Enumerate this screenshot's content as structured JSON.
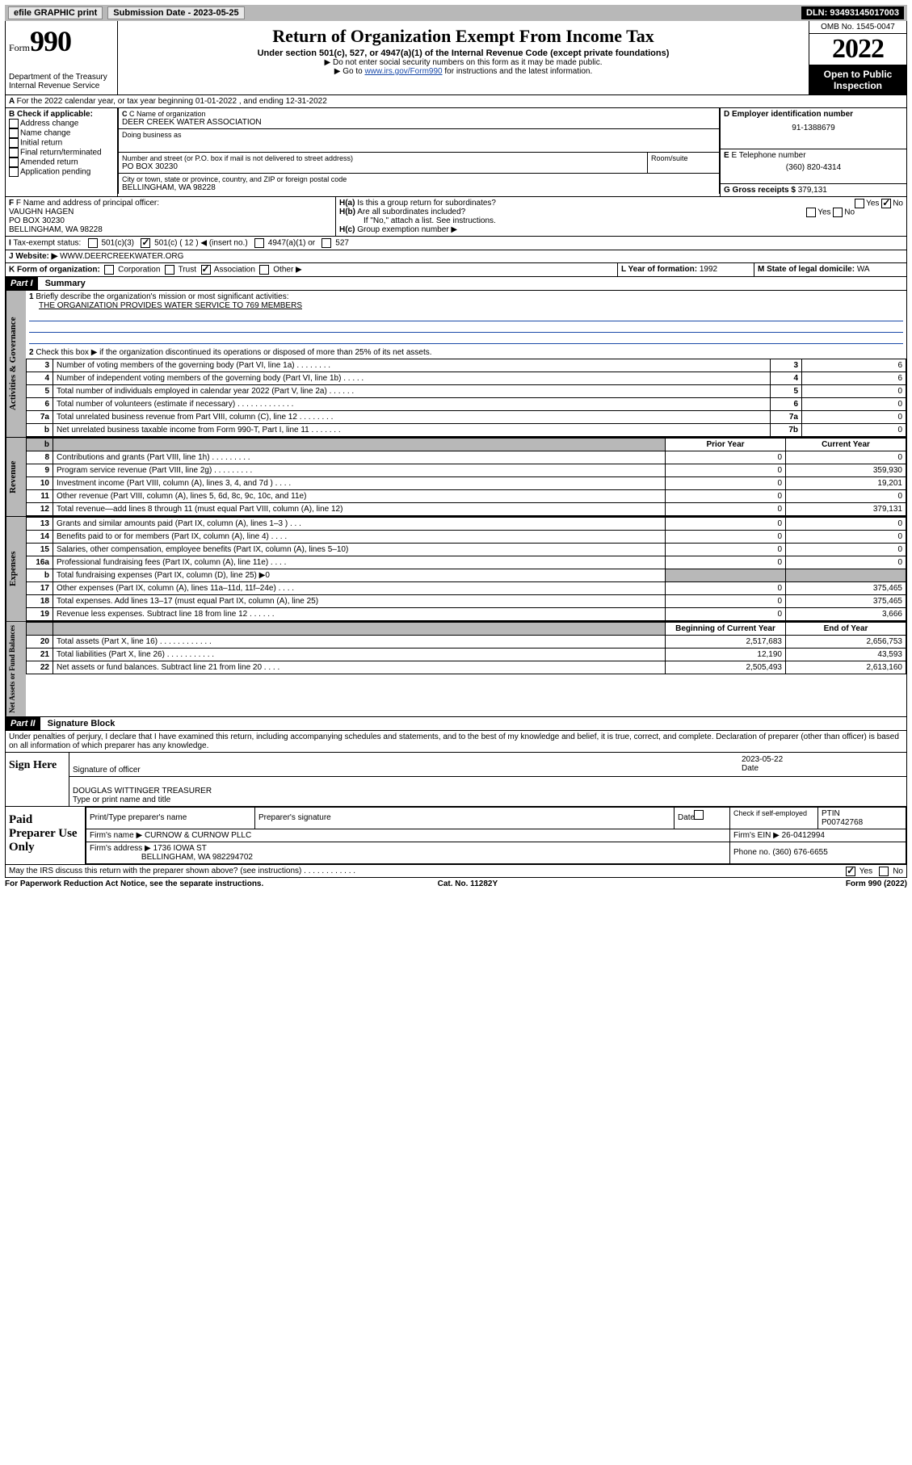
{
  "topbar": {
    "efile": "efile GRAPHIC print",
    "submission_label": "Submission Date - 2023-05-25",
    "dln": "DLN: 93493145017003"
  },
  "header": {
    "form_label": "Form",
    "form_number": "990",
    "dept": "Department of the Treasury",
    "irs": "Internal Revenue Service",
    "title": "Return of Organization Exempt From Income Tax",
    "sub": "Under section 501(c), 527, or 4947(a)(1) of the Internal Revenue Code (except private foundations)",
    "note1": "Do not enter social security numbers on this form as it may be made public.",
    "note2_pre": "Go to ",
    "note2_link": "www.irs.gov/Form990",
    "note2_post": " for instructions and the latest information.",
    "omb": "OMB No. 1545-0047",
    "year": "2022",
    "open": "Open to Public Inspection"
  },
  "period": {
    "line": "For the 2022 calendar year, or tax year beginning 01-01-2022    , and ending 12-31-2022"
  },
  "sectionB": {
    "label": "B Check if applicable:",
    "opts": [
      "Address change",
      "Name change",
      "Initial return",
      "Final return/terminated",
      "Amended return",
      "Application pending"
    ]
  },
  "sectionC": {
    "name_label": "C Name of organization",
    "name": "DEER CREEK WATER ASSOCIATION",
    "dba_label": "Doing business as",
    "addr_label": "Number and street (or P.O. box if mail is not delivered to street address)",
    "room_label": "Room/suite",
    "addr": "PO BOX 30230",
    "city_label": "City or town, state or province, country, and ZIP or foreign postal code",
    "city": "BELLINGHAM, WA  98228"
  },
  "sectionD": {
    "label": "D Employer identification number",
    "value": "91-1388679"
  },
  "sectionE": {
    "label": "E Telephone number",
    "value": "(360) 820-4314"
  },
  "sectionG": {
    "label": "G Gross receipts $",
    "value": "379,131"
  },
  "sectionF": {
    "label": "F Name and address of principal officer:",
    "name": "VAUGHN HAGEN",
    "addr": "PO BOX 30230",
    "city": "BELLINGHAM, WA  98228"
  },
  "sectionH": {
    "a": "Is this a group return for subordinates?",
    "b": "Are all subordinates included?",
    "b_note": "If \"No,\" attach a list. See instructions.",
    "c": "Group exemption number ▶",
    "yes": "Yes",
    "no": "No"
  },
  "sectionI": {
    "label": "Tax-exempt status:",
    "c12": "501(c) ( 12 ) ◀ (insert no.)",
    "c3": "501(c)(3)",
    "a1": "4947(a)(1) or",
    "527": "527"
  },
  "sectionJ": {
    "label": "Website: ▶",
    "value": "WWW.DEERCREEKWATER.ORG"
  },
  "sectionK": {
    "label": "K Form of organization:",
    "corp": "Corporation",
    "trust": "Trust",
    "assoc": "Association",
    "other": "Other ▶"
  },
  "sectionL": {
    "label": "L Year of formation:",
    "value": "1992"
  },
  "sectionM": {
    "label": "M State of legal domicile:",
    "value": "WA"
  },
  "partI": {
    "header": "Part I",
    "title": "Summary",
    "mission_label": "Briefly describe the organization's mission or most significant activities:",
    "mission": "THE ORGANIZATION PROVIDES WATER SERVICE TO 769 MEMBERS",
    "line2": "Check this box ▶      if the organization discontinued its operations or disposed of more than 25% of its net assets.",
    "lines_gov": [
      {
        "n": "3",
        "t": "Number of voting members of the governing body (Part VI, line 1a)  .   .   .   .   .   .   .   .   ",
        "b": "3",
        "v": "6"
      },
      {
        "n": "4",
        "t": "Number of independent voting members of the governing body (Part VI, line 1b)   .   .   .   .   .",
        "b": "4",
        "v": "6"
      },
      {
        "n": "5",
        "t": "Total number of individuals employed in calendar year 2022 (Part V, line 2a)   .   .   .   .   .   .",
        "b": "5",
        "v": "0"
      },
      {
        "n": "6",
        "t": "Total number of volunteers (estimate if necessary)   .   .   .   .   .   .   .   .   .   .   .   .   .",
        "b": "6",
        "v": "0"
      },
      {
        "n": "7a",
        "t": "Total unrelated business revenue from Part VIII, column (C), line 12   .   .   .   .   .   .   .   .",
        "b": "7a",
        "v": "0"
      },
      {
        "n": "b",
        "t": "Net unrelated business taxable income from Form 990-T, Part I, line 11   .   .   .   .   .   .   .",
        "b": "7b",
        "v": "0"
      }
    ],
    "col_prior": "Prior Year",
    "col_current": "Current Year",
    "revenue": [
      {
        "n": "8",
        "t": "Contributions and grants (Part VIII, line 1h)   .   .   .   .   .   .   .   .   .",
        "p": "0",
        "c": "0"
      },
      {
        "n": "9",
        "t": "Program service revenue (Part VIII, line 2g)   .   .   .   .   .   .   .   .   .",
        "p": "0",
        "c": "359,930"
      },
      {
        "n": "10",
        "t": "Investment income (Part VIII, column (A), lines 3, 4, and 7d )   .   .   .   .",
        "p": "0",
        "c": "19,201"
      },
      {
        "n": "11",
        "t": "Other revenue (Part VIII, column (A), lines 5, 6d, 8c, 9c, 10c, and 11e)",
        "p": "0",
        "c": "0"
      },
      {
        "n": "12",
        "t": "Total revenue—add lines 8 through 11 (must equal Part VIII, column (A), line 12)",
        "p": "0",
        "c": "379,131"
      }
    ],
    "expenses": [
      {
        "n": "13",
        "t": "Grants and similar amounts paid (Part IX, column (A), lines 1–3 )   .   .   .",
        "p": "0",
        "c": "0"
      },
      {
        "n": "14",
        "t": "Benefits paid to or for members (Part IX, column (A), line 4)   .   .   .   .",
        "p": "0",
        "c": "0"
      },
      {
        "n": "15",
        "t": "Salaries, other compensation, employee benefits (Part IX, column (A), lines 5–10)",
        "p": "0",
        "c": "0"
      },
      {
        "n": "16a",
        "t": "Professional fundraising fees (Part IX, column (A), line 11e)   .   .   .   .",
        "p": "0",
        "c": "0"
      },
      {
        "n": "b",
        "t": "Total fundraising expenses (Part IX, column (D), line 25) ▶0",
        "p": "",
        "c": "",
        "grey": true
      },
      {
        "n": "17",
        "t": "Other expenses (Part IX, column (A), lines 11a–11d, 11f–24e)   .   .   .   .",
        "p": "0",
        "c": "375,465"
      },
      {
        "n": "18",
        "t": "Total expenses. Add lines 13–17 (must equal Part IX, column (A), line 25)",
        "p": "0",
        "c": "375,465"
      },
      {
        "n": "19",
        "t": "Revenue less expenses. Subtract line 18 from line 12   .   .   .   .   .   .",
        "p": "0",
        "c": "3,666"
      }
    ],
    "col_begin": "Beginning of Current Year",
    "col_end": "End of Year",
    "netassets": [
      {
        "n": "20",
        "t": "Total assets (Part X, line 16)   .   .   .   .   .   .   .   .   .   .   .   .",
        "p": "2,517,683",
        "c": "2,656,753"
      },
      {
        "n": "21",
        "t": "Total liabilities (Part X, line 26)   .   .   .   .   .   .   .   .   .   .   .",
        "p": "12,190",
        "c": "43,593"
      },
      {
        "n": "22",
        "t": "Net assets or fund balances. Subtract line 21 from line 20   .   .   .   .",
        "p": "2,505,493",
        "c": "2,613,160"
      }
    ],
    "tabs": {
      "gov": "Activities & Governance",
      "rev": "Revenue",
      "exp": "Expenses",
      "net": "Net Assets or Fund Balances"
    }
  },
  "partII": {
    "header": "Part II",
    "title": "Signature Block",
    "declaration": "Under penalties of perjury, I declare that I have examined this return, including accompanying schedules and statements, and to the best of my knowledge and belief, it is true, correct, and complete. Declaration of preparer (other than officer) is based on all information of which preparer has any knowledge.",
    "sign_here": "Sign Here",
    "sig_officer": "Signature of officer",
    "sig_date": "Date",
    "sig_date_val": "2023-05-22",
    "officer_name": "DOUGLAS WITTINGER  TREASURER",
    "officer_type": "Type or print name and title",
    "paid": "Paid Preparer Use Only",
    "prep_name_label": "Print/Type preparer's name",
    "prep_sig_label": "Preparer's signature",
    "date_label": "Date",
    "check_if": "Check       if self-employed",
    "ptin_label": "PTIN",
    "ptin": "P00742768",
    "firm_name_label": "Firm's name    ▶",
    "firm_name": "CURNOW & CURNOW PLLC",
    "firm_ein_label": "Firm's EIN ▶",
    "firm_ein": "26-0412994",
    "firm_addr_label": "Firm's address ▶",
    "firm_addr1": "1736 IOWA ST",
    "firm_addr2": "BELLINGHAM, WA  982294702",
    "phone_label": "Phone no.",
    "phone": "(360) 676-6655",
    "may_irs": "May the IRS discuss this return with the preparer shown above? (see instructions)   .   .   .   .   .   .   .   .   .   .   .   .",
    "yes": "Yes",
    "no": "No"
  },
  "footer": {
    "left": "For Paperwork Reduction Act Notice, see the separate instructions.",
    "mid": "Cat. No. 11282Y",
    "right": "Form 990 (2022)"
  }
}
